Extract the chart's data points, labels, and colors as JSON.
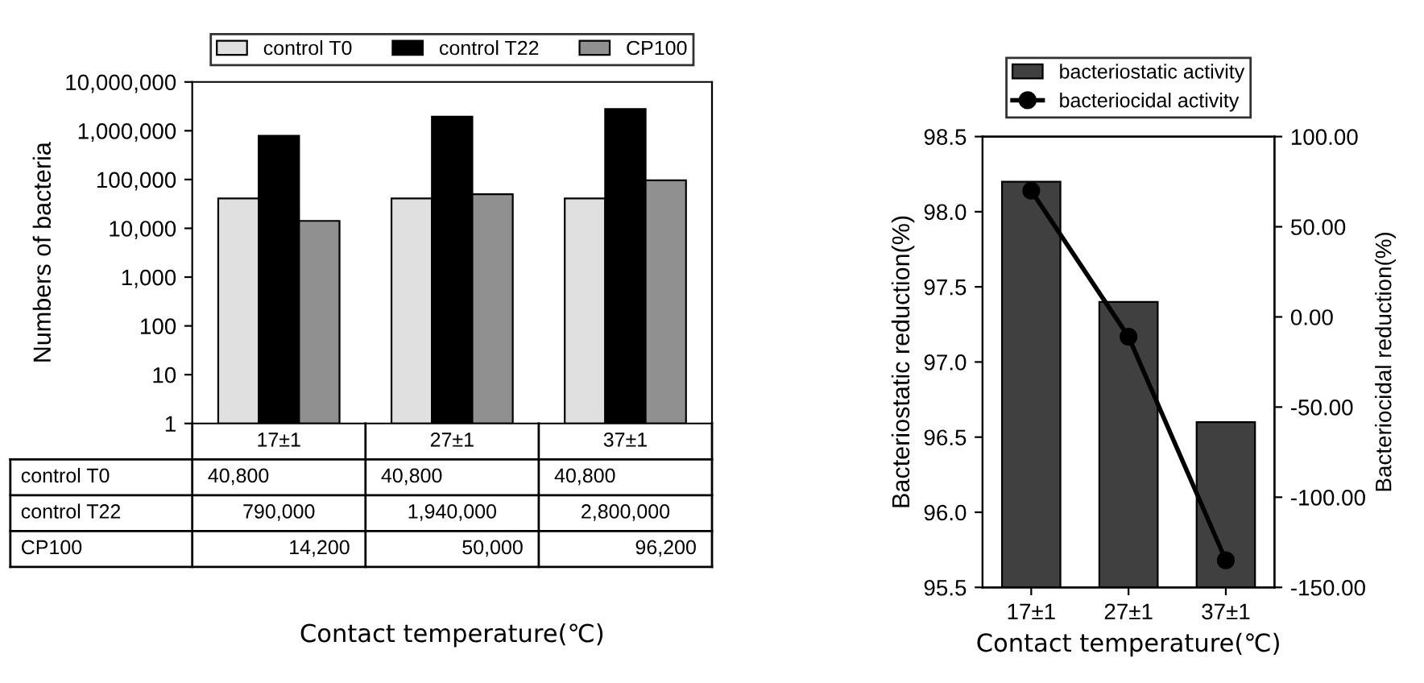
{
  "chart_data": [
    {
      "type": "bar",
      "ylabel": "Numbers of bacteria",
      "xlabel": "Contact temperature(℃)",
      "categories": [
        "17±1",
        "27±1",
        "37±1"
      ],
      "log": true,
      "ylim": [
        1,
        10000000
      ],
      "yticks": [
        {
          "value": 1,
          "label": "1"
        },
        {
          "value": 10,
          "label": "10"
        },
        {
          "value": 100,
          "label": "100"
        },
        {
          "value": 1000,
          "label": "1,000"
        },
        {
          "value": 10000,
          "label": "10,000"
        },
        {
          "value": 100000,
          "label": "100,000"
        },
        {
          "value": 1000000,
          "label": "1,000,000"
        },
        {
          "value": 10000000,
          "label": "10,000,000"
        }
      ],
      "legend": "top",
      "grid": false,
      "series": [
        {
          "name": "control T0",
          "color": "#e0e0e0",
          "values": [
            40800,
            40800,
            40800
          ],
          "value_labels": [
            "40,800",
            "40,800",
            "40,800"
          ]
        },
        {
          "name": "control T22",
          "color": "#000000",
          "values": [
            790000,
            1940000,
            2800000
          ],
          "value_labels": [
            "790,000",
            "1,940,000",
            "2,800,000"
          ]
        },
        {
          "name": "CP100",
          "color": "#909090",
          "values": [
            14200,
            50000,
            96200
          ],
          "value_labels": [
            "14,200",
            "50,000",
            "96,200"
          ]
        }
      ]
    },
    {
      "type": "bar",
      "ylabel": "Bacteriostatic reduction(%)",
      "y2label": "Bacteriocidal reduction(%)",
      "xlabel": "Contact temperature(℃)",
      "categories": [
        "17±1",
        "27±1",
        "37±1"
      ],
      "ylim": [
        95.5,
        98.5
      ],
      "yticks": [
        {
          "value": 95.5,
          "label": "95.5"
        },
        {
          "value": 96,
          "label": "96.0"
        },
        {
          "value": 96.5,
          "label": "96.5"
        },
        {
          "value": 97,
          "label": "97.0"
        },
        {
          "value": 97.5,
          "label": "97.5"
        },
        {
          "value": 98,
          "label": "98.0"
        },
        {
          "value": 98.5,
          "label": "98.5"
        }
      ],
      "y2lim": [
        -150,
        100
      ],
      "y2ticks": [
        {
          "value": -150,
          "label": "-150.00"
        },
        {
          "value": -100,
          "label": "-100.00"
        },
        {
          "value": -50,
          "label": "-50.00"
        },
        {
          "value": 0,
          "label": "0.00"
        },
        {
          "value": 50,
          "label": "50.00"
        },
        {
          "value": 100,
          "label": "100.00"
        }
      ],
      "legend": "top",
      "grid": false,
      "series": [
        {
          "name": "bacteriostatic activity",
          "type": "bar",
          "color": "#404040",
          "values": [
            98.2,
            97.4,
            96.6
          ]
        },
        {
          "name": "bacteriocidal activity",
          "type": "line",
          "axis": "y2",
          "marker": "circle",
          "color": "#000000",
          "values": [
            70,
            -11,
            -135
          ]
        }
      ]
    }
  ]
}
